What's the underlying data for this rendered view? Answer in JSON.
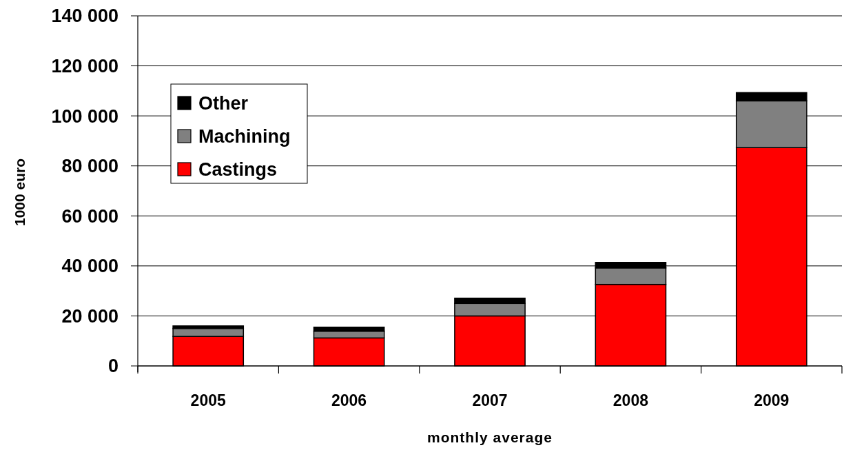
{
  "chart_data": {
    "type": "bar",
    "xlabel": "monthly average",
    "ylabel": "1000 euro",
    "categories": [
      "2005",
      "2006",
      "2007",
      "2008",
      "2009"
    ],
    "series": [
      {
        "name": "Castings",
        "color": "#ff0000",
        "values": [
          11800,
          11200,
          20000,
          32600,
          87300
        ]
      },
      {
        "name": "Machining",
        "color": "#808080",
        "values": [
          3200,
          2700,
          5000,
          6600,
          18700
        ]
      },
      {
        "name": "Other",
        "color": "#000000",
        "values": [
          1000,
          1600,
          2100,
          2200,
          3300
        ]
      }
    ],
    "stacked": true,
    "ylim": [
      0,
      140000
    ],
    "yticks": [
      0,
      {
        "value": 20000,
        "label": "20 000"
      },
      {
        "value": 40000,
        "label": "40 000"
      },
      {
        "value": 60000,
        "label": "60 000"
      },
      {
        "value": 80000,
        "label": "80 000"
      },
      {
        "value": 100000,
        "label": "100 000"
      },
      {
        "value": 120000,
        "label": "120 000"
      },
      {
        "value": 140000,
        "label": "140 000"
      }
    ],
    "grid": "y",
    "legend": "top left"
  }
}
